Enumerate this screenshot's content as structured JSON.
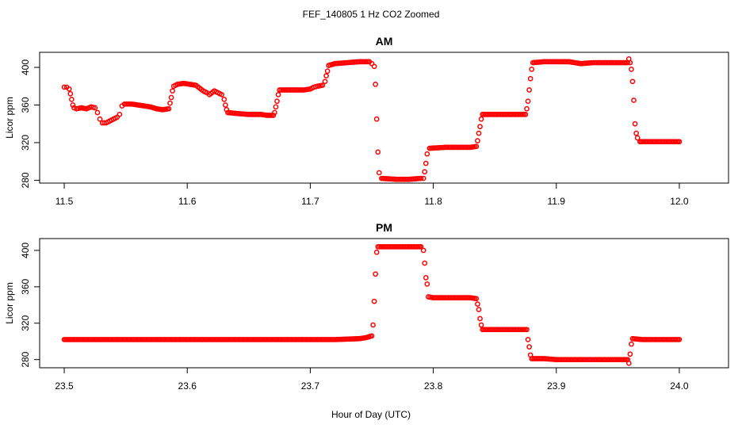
{
  "figure": {
    "title": "FEF_140805  1 Hz CO2 Zoomed",
    "xlabel": "Hour of Day (UTC)"
  },
  "colors": {
    "points": "#ff0000",
    "axis": "#000000"
  },
  "chart_data": [
    {
      "type": "scatter",
      "title": "AM",
      "ylabel": "Licor ppm",
      "xlim": [
        11.48,
        12.04
      ],
      "ylim": [
        277,
        416
      ],
      "xticks": [
        "11.5",
        "11.6",
        "11.7",
        "11.8",
        "11.9",
        "12.0"
      ],
      "xtick_values": [
        11.5,
        11.6,
        11.7,
        11.8,
        11.9,
        12.0
      ],
      "yticks": [
        "280",
        "320",
        "360",
        "400"
      ],
      "ytick_values": [
        280,
        320,
        360,
        400
      ],
      "series": [
        {
          "color": "#ff0000",
          "points": [
            [
              11.5,
              379
            ],
            [
              11.502,
              379
            ],
            [
              11.504,
              377
            ],
            [
              11.505,
              372
            ],
            [
              11.506,
              366
            ],
            [
              11.507,
              360
            ],
            [
              11.508,
              357
            ],
            [
              11.51,
              356
            ],
            [
              11.514,
              357
            ],
            [
              11.518,
              356
            ],
            [
              11.522,
              358
            ],
            [
              11.525,
              357
            ],
            [
              11.527,
              352
            ],
            [
              11.529,
              345
            ],
            [
              11.531,
              341
            ],
            [
              11.534,
              341
            ],
            [
              11.537,
              343
            ],
            [
              11.54,
              345
            ],
            [
              11.543,
              347
            ],
            [
              11.545,
              350
            ],
            [
              11.547,
              359
            ],
            [
              11.549,
              361
            ],
            [
              11.555,
              361
            ],
            [
              11.56,
              360
            ],
            [
              11.565,
              359
            ],
            [
              11.57,
              358
            ],
            [
              11.575,
              356
            ],
            [
              11.58,
              355
            ],
            [
              11.585,
              356
            ],
            [
              11.586,
              362
            ],
            [
              11.587,
              368
            ],
            [
              11.588,
              375
            ],
            [
              11.589,
              380
            ],
            [
              11.592,
              382
            ],
            [
              11.597,
              383
            ],
            [
              11.602,
              382
            ],
            [
              11.607,
              381
            ],
            [
              11.61,
              378
            ],
            [
              11.613,
              375
            ],
            [
              11.616,
              373
            ],
            [
              11.618,
              371
            ],
            [
              11.622,
              375
            ],
            [
              11.625,
              373
            ],
            [
              11.628,
              371
            ],
            [
              11.63,
              366
            ],
            [
              11.631,
              360
            ],
            [
              11.632,
              355
            ],
            [
              11.633,
              352
            ],
            [
              11.64,
              351
            ],
            [
              11.65,
              350
            ],
            [
              11.66,
              350
            ],
            [
              11.665,
              349
            ],
            [
              11.67,
              349
            ],
            [
              11.671,
              352
            ],
            [
              11.672,
              358
            ],
            [
              11.673,
              364
            ],
            [
              11.674,
              371
            ],
            [
              11.675,
              376
            ],
            [
              11.68,
              376
            ],
            [
              11.69,
              376
            ],
            [
              11.695,
              376
            ],
            [
              11.7,
              377
            ],
            [
              11.703,
              379
            ],
            [
              11.706,
              380
            ],
            [
              11.71,
              381
            ],
            [
              11.712,
              385
            ],
            [
              11.713,
              391
            ],
            [
              11.714,
              396
            ],
            [
              11.715,
              402
            ],
            [
              11.72,
              404
            ],
            [
              11.73,
              405
            ],
            [
              11.74,
              406
            ],
            [
              11.748,
              406
            ],
            [
              11.75,
              404
            ],
            [
              11.752,
              401
            ],
            [
              11.753,
              382
            ],
            [
              11.754,
              345
            ],
            [
              11.755,
              310
            ],
            [
              11.756,
              288
            ],
            [
              11.758,
              282
            ],
            [
              11.77,
              281
            ],
            [
              11.78,
              281
            ],
            [
              11.79,
              282
            ],
            [
              11.792,
              282
            ],
            [
              11.793,
              289
            ],
            [
              11.794,
              298
            ],
            [
              11.795,
              308
            ],
            [
              11.797,
              314
            ],
            [
              11.81,
              315
            ],
            [
              11.82,
              315
            ],
            [
              11.83,
              315
            ],
            [
              11.835,
              316
            ],
            [
              11.836,
              322
            ],
            [
              11.837,
              330
            ],
            [
              11.838,
              337
            ],
            [
              11.839,
              345
            ],
            [
              11.84,
              350
            ],
            [
              11.85,
              350
            ],
            [
              11.86,
              350
            ],
            [
              11.87,
              350
            ],
            [
              11.875,
              350
            ],
            [
              11.876,
              356
            ],
            [
              11.877,
              364
            ],
            [
              11.878,
              376
            ],
            [
              11.879,
              388
            ],
            [
              11.88,
              398
            ],
            [
              11.881,
              405
            ],
            [
              11.89,
              406
            ],
            [
              11.9,
              406
            ],
            [
              11.91,
              406
            ],
            [
              11.92,
              404
            ],
            [
              11.93,
              405
            ],
            [
              11.94,
              405
            ],
            [
              11.95,
              405
            ],
            [
              11.958,
              405
            ],
            [
              11.959,
              409
            ],
            [
              11.96,
              405
            ],
            [
              11.961,
              398
            ],
            [
              11.962,
              385
            ],
            [
              11.963,
              365
            ],
            [
              11.964,
              340
            ],
            [
              11.965,
              330
            ],
            [
              11.966,
              325
            ],
            [
              11.968,
              321
            ],
            [
              11.98,
              321
            ],
            [
              11.99,
              321
            ],
            [
              12.0,
              321
            ]
          ]
        }
      ]
    },
    {
      "type": "scatter",
      "title": "PM",
      "ylabel": "Licor ppm",
      "xlim": [
        23.48,
        24.04
      ],
      "ylim": [
        271,
        413
      ],
      "xticks": [
        "23.5",
        "23.6",
        "23.7",
        "23.8",
        "23.9",
        "24.0"
      ],
      "xtick_values": [
        23.5,
        23.6,
        23.7,
        23.8,
        23.9,
        24.0
      ],
      "yticks": [
        "280",
        "320",
        "360",
        "400"
      ],
      "ytick_values": [
        280,
        320,
        360,
        400
      ],
      "series": [
        {
          "color": "#ff0000",
          "points": [
            [
              23.5,
              302
            ],
            [
              23.52,
              302
            ],
            [
              23.54,
              302
            ],
            [
              23.56,
              302
            ],
            [
              23.58,
              302
            ],
            [
              23.6,
              302
            ],
            [
              23.62,
              302
            ],
            [
              23.64,
              302
            ],
            [
              23.66,
              302
            ],
            [
              23.68,
              302
            ],
            [
              23.7,
              302
            ],
            [
              23.72,
              302
            ],
            [
              23.74,
              303
            ],
            [
              23.745,
              304
            ],
            [
              23.75,
              306
            ],
            [
              23.751,
              318
            ],
            [
              23.752,
              344
            ],
            [
              23.753,
              374
            ],
            [
              23.754,
              398
            ],
            [
              23.755,
              404
            ],
            [
              23.76,
              404
            ],
            [
              23.77,
              404
            ],
            [
              23.78,
              404
            ],
            [
              23.79,
              404
            ],
            [
              23.792,
              400
            ],
            [
              23.793,
              386
            ],
            [
              23.794,
              370
            ],
            [
              23.795,
              363
            ],
            [
              23.796,
              349
            ],
            [
              23.8,
              348
            ],
            [
              23.81,
              348
            ],
            [
              23.82,
              348
            ],
            [
              23.83,
              348
            ],
            [
              23.835,
              347
            ],
            [
              23.836,
              341
            ],
            [
              23.837,
              335
            ],
            [
              23.838,
              325
            ],
            [
              23.839,
              318
            ],
            [
              23.84,
              313
            ],
            [
              23.85,
              313
            ],
            [
              23.86,
              313
            ],
            [
              23.87,
              313
            ],
            [
              23.876,
              313
            ],
            [
              23.877,
              302
            ],
            [
              23.878,
              294
            ],
            [
              23.879,
              285
            ],
            [
              23.88,
              281
            ],
            [
              23.89,
              281
            ],
            [
              23.9,
              280
            ],
            [
              23.91,
              280
            ],
            [
              23.92,
              280
            ],
            [
              23.93,
              280
            ],
            [
              23.94,
              280
            ],
            [
              23.95,
              280
            ],
            [
              23.958,
              280
            ],
            [
              23.959,
              276
            ],
            [
              23.96,
              286
            ],
            [
              23.961,
              297
            ],
            [
              23.962,
              303
            ],
            [
              23.97,
              302
            ],
            [
              23.98,
              302
            ],
            [
              23.99,
              302
            ],
            [
              24.0,
              302
            ]
          ]
        }
      ]
    }
  ]
}
